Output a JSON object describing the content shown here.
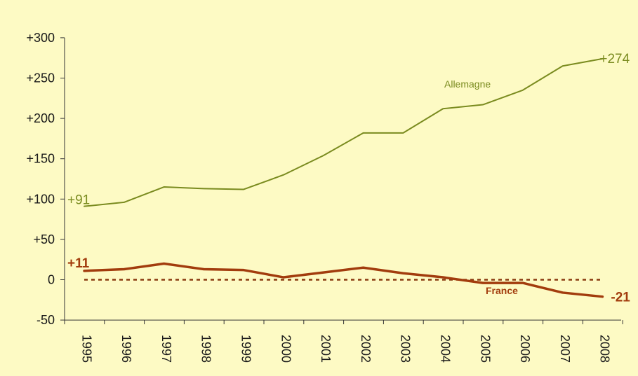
{
  "chart_data": {
    "type": "line",
    "x": [
      "1995",
      "1996",
      "1997",
      "1998",
      "1999",
      "2000",
      "2001",
      "2002",
      "2003",
      "2004",
      "2005",
      "2006",
      "2007",
      "2008"
    ],
    "ylim": [
      -50,
      300
    ],
    "yticks": [
      -50,
      0,
      50,
      100,
      150,
      200,
      250,
      300
    ],
    "ytick_labels": [
      "-50",
      "0",
      "+50",
      "+100",
      "+150",
      "+200",
      "+250",
      "+300"
    ],
    "grid": false,
    "series": [
      {
        "name": "Allemagne",
        "color": "#7a8b1f",
        "values": [
          91,
          96,
          115,
          113,
          112,
          130,
          154,
          182,
          182,
          212,
          217,
          235,
          265,
          274
        ],
        "start_label": "+91",
        "end_label": "+274"
      },
      {
        "name": "France",
        "color": "#a23c0d",
        "values": [
          11,
          13,
          20,
          13,
          12,
          3,
          9,
          15,
          8,
          3,
          -4,
          -4,
          -16,
          -21
        ],
        "start_label": "+11",
        "end_label": "-21"
      }
    ],
    "reference_line": {
      "value": 0,
      "style": "dashed",
      "color": "#8a3a10"
    }
  }
}
